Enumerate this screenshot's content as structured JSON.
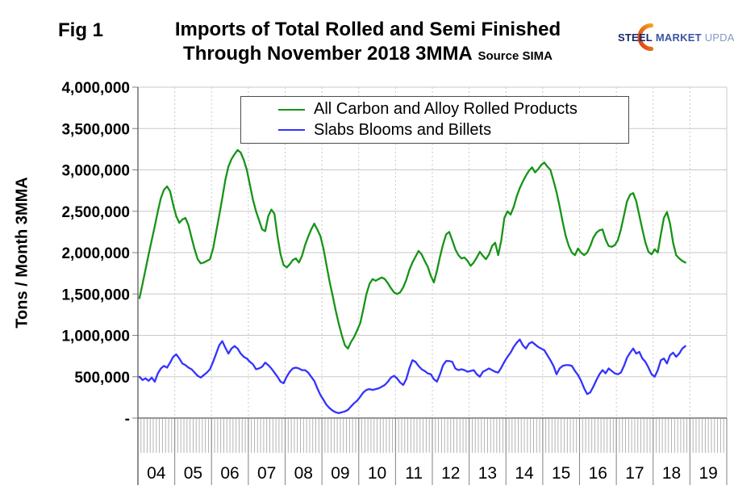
{
  "figure_label": "Fig 1",
  "title": {
    "line1": "Imports of Total Rolled and Semi Finished",
    "line2": "Through November 2018 3MMA",
    "source": "Source SIMA"
  },
  "logo": {
    "word1": "STEEL",
    "word2": "MARKET",
    "word3": "UPDATE",
    "crescent_colors": [
      "#d93a1a",
      "#f6a21b"
    ]
  },
  "y_axis": {
    "title": "Tons / Month 3MMA",
    "tick_labels": [
      "4,000,000",
      "3,500,000",
      "3,000,000",
      "2,500,000",
      "2,000,000",
      "1,500,000",
      "1,000,000",
      "500,000",
      "-"
    ]
  },
  "x_axis": {
    "year_labels": [
      "04",
      "05",
      "06",
      "07",
      "08",
      "09",
      "10",
      "11",
      "12",
      "13",
      "14",
      "15",
      "16",
      "17",
      "18",
      "19"
    ]
  },
  "legend": [
    {
      "label": "All Carbon and Alloy Rolled Products",
      "color": "#169416"
    },
    {
      "label": "Slabs Blooms and Billets",
      "color": "#3333ff"
    }
  ],
  "chart_data": {
    "type": "line",
    "title": "Imports of Total Rolled and Semi Finished Through November 2018 3MMA",
    "source": "SIMA",
    "ylabel": "Tons / Month 3MMA",
    "ylim": [
      0,
      4000000
    ],
    "y_tick_step": 500000,
    "grid": true,
    "legend_position": "top-center",
    "x_unit": "month",
    "x_start": "2004-01",
    "x_end": "2018-11",
    "x_year_ticks": [
      "04",
      "05",
      "06",
      "07",
      "08",
      "09",
      "10",
      "11",
      "12",
      "13",
      "14",
      "15",
      "16",
      "17",
      "18",
      "19"
    ],
    "series": [
      {
        "name": "All Carbon and Alloy Rolled Products",
        "color": "#169416",
        "values": [
          1450000,
          1620000,
          1800000,
          1980000,
          2150000,
          2320000,
          2500000,
          2660000,
          2760000,
          2800000,
          2740000,
          2580000,
          2440000,
          2360000,
          2400000,
          2420000,
          2330000,
          2180000,
          2040000,
          1920000,
          1870000,
          1880000,
          1900000,
          1920000,
          2050000,
          2250000,
          2450000,
          2660000,
          2880000,
          3040000,
          3130000,
          3190000,
          3240000,
          3210000,
          3120000,
          3000000,
          2820000,
          2640000,
          2500000,
          2390000,
          2280000,
          2260000,
          2440000,
          2520000,
          2470000,
          2200000,
          1980000,
          1850000,
          1820000,
          1860000,
          1910000,
          1930000,
          1880000,
          1960000,
          2090000,
          2190000,
          2280000,
          2350000,
          2280000,
          2200000,
          2050000,
          1850000,
          1650000,
          1480000,
          1300000,
          1140000,
          1000000,
          880000,
          840000,
          920000,
          980000,
          1060000,
          1150000,
          1320000,
          1500000,
          1620000,
          1680000,
          1660000,
          1680000,
          1700000,
          1680000,
          1630000,
          1570000,
          1520000,
          1500000,
          1520000,
          1580000,
          1670000,
          1790000,
          1880000,
          1950000,
          2020000,
          1980000,
          1900000,
          1830000,
          1720000,
          1640000,
          1780000,
          1950000,
          2100000,
          2220000,
          2250000,
          2150000,
          2040000,
          1970000,
          1930000,
          1940000,
          1900000,
          1840000,
          1880000,
          1940000,
          2010000,
          1960000,
          1920000,
          1980000,
          2080000,
          2120000,
          1970000,
          2150000,
          2420000,
          2500000,
          2460000,
          2550000,
          2680000,
          2780000,
          2860000,
          2930000,
          2990000,
          3030000,
          2970000,
          3010000,
          3060000,
          3090000,
          3040000,
          3000000,
          2870000,
          2730000,
          2560000,
          2370000,
          2200000,
          2080000,
          2000000,
          1970000,
          2050000,
          2000000,
          1970000,
          2000000,
          2080000,
          2180000,
          2240000,
          2270000,
          2280000,
          2160000,
          2080000,
          2070000,
          2090000,
          2150000,
          2280000,
          2450000,
          2620000,
          2700000,
          2720000,
          2620000,
          2450000,
          2280000,
          2120000,
          2010000,
          1980000,
          2040000,
          2000000,
          2220000,
          2420000,
          2490000,
          2350000,
          2120000,
          1970000,
          1930000,
          1900000,
          1880000
        ]
      },
      {
        "name": "Slabs Blooms and Billets",
        "color": "#3333ff",
        "values": [
          500000,
          460000,
          480000,
          450000,
          490000,
          440000,
          540000,
          600000,
          630000,
          610000,
          670000,
          740000,
          770000,
          720000,
          660000,
          640000,
          610000,
          590000,
          550000,
          510000,
          490000,
          520000,
          550000,
          590000,
          680000,
          780000,
          880000,
          930000,
          850000,
          780000,
          840000,
          870000,
          840000,
          780000,
          740000,
          720000,
          680000,
          650000,
          590000,
          600000,
          620000,
          670000,
          640000,
          600000,
          550000,
          500000,
          440000,
          420000,
          500000,
          560000,
          600000,
          610000,
          600000,
          580000,
          580000,
          550000,
          500000,
          450000,
          360000,
          280000,
          220000,
          160000,
          120000,
          90000,
          70000,
          60000,
          70000,
          80000,
          100000,
          140000,
          180000,
          210000,
          260000,
          310000,
          340000,
          350000,
          340000,
          350000,
          360000,
          380000,
          400000,
          440000,
          490000,
          510000,
          480000,
          430000,
          400000,
          470000,
          600000,
          700000,
          680000,
          630000,
          590000,
          570000,
          540000,
          530000,
          470000,
          440000,
          530000,
          640000,
          690000,
          690000,
          680000,
          600000,
          580000,
          590000,
          580000,
          560000,
          570000,
          580000,
          530000,
          500000,
          560000,
          580000,
          600000,
          580000,
          560000,
          550000,
          610000,
          680000,
          740000,
          790000,
          860000,
          910000,
          950000,
          880000,
          840000,
          900000,
          920000,
          890000,
          860000,
          840000,
          820000,
          760000,
          700000,
          630000,
          530000,
          600000,
          630000,
          640000,
          640000,
          630000,
          570000,
          520000,
          450000,
          360000,
          290000,
          310000,
          380000,
          460000,
          530000,
          580000,
          540000,
          600000,
          570000,
          540000,
          530000,
          550000,
          630000,
          730000,
          790000,
          840000,
          780000,
          800000,
          720000,
          680000,
          610000,
          530000,
          500000,
          580000,
          700000,
          720000,
          660000,
          760000,
          790000,
          740000,
          780000,
          840000,
          870000
        ]
      }
    ]
  }
}
